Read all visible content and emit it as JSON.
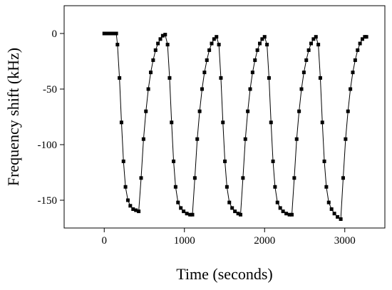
{
  "chart_data": {
    "type": "line",
    "x_label": "Time (seconds)",
    "y_label": "Frequency shift (kHz)",
    "x": [
      0,
      30,
      60,
      90,
      120,
      150,
      165,
      190,
      215,
      240,
      265,
      295,
      325,
      360,
      395,
      430,
      460,
      490,
      520,
      550,
      580,
      610,
      640,
      670,
      700,
      730,
      760,
      790,
      815,
      840,
      865,
      890,
      920,
      955,
      990,
      1030,
      1070,
      1100,
      1130,
      1160,
      1190,
      1220,
      1250,
      1280,
      1310,
      1340,
      1370,
      1400,
      1430,
      1455,
      1480,
      1505,
      1530,
      1560,
      1595,
      1630,
      1670,
      1700,
      1730,
      1760,
      1790,
      1820,
      1850,
      1880,
      1910,
      1940,
      1970,
      2000,
      2030,
      2055,
      2080,
      2105,
      2130,
      2160,
      2195,
      2230,
      2270,
      2310,
      2340,
      2370,
      2400,
      2430,
      2460,
      2490,
      2520,
      2550,
      2580,
      2610,
      2640,
      2670,
      2695,
      2720,
      2745,
      2770,
      2800,
      2835,
      2870,
      2910,
      2950,
      2980,
      3010,
      3040,
      3070,
      3100,
      3130,
      3160,
      3190,
      3220,
      3250,
      3270
    ],
    "series": [
      {
        "color": "#000000",
        "values": [
          0,
          0,
          0,
          0,
          0,
          0,
          -10,
          -40,
          -80,
          -115,
          -138,
          -150,
          -155,
          -158,
          -159,
          -160,
          -130,
          -95,
          -70,
          -50,
          -35,
          -24,
          -15,
          -9,
          -5,
          -2,
          -1,
          -10,
          -40,
          -80,
          -115,
          -138,
          -152,
          -157,
          -160,
          -162,
          -163,
          -163,
          -130,
          -95,
          -70,
          -50,
          -35,
          -24,
          -15,
          -9,
          -5,
          -3,
          -10,
          -40,
          -80,
          -115,
          -138,
          -152,
          -157,
          -160,
          -162,
          -163,
          -130,
          -95,
          -70,
          -50,
          -35,
          -24,
          -15,
          -9,
          -5,
          -3,
          -10,
          -40,
          -80,
          -115,
          -138,
          -152,
          -157,
          -160,
          -162,
          -163,
          -163,
          -130,
          -95,
          -70,
          -50,
          -35,
          -24,
          -15,
          -9,
          -5,
          -3,
          -10,
          -40,
          -80,
          -115,
          -138,
          -152,
          -158,
          -162,
          -165,
          -167,
          -130,
          -95,
          -70,
          -50,
          -35,
          -24,
          -15,
          -9,
          -5,
          -3,
          -3
        ]
      }
    ],
    "xlim": [
      -500,
      3500
    ],
    "xticks": [
      0,
      1000,
      2000,
      3000
    ],
    "ylim": [
      -175,
      25
    ],
    "yticks": [
      0,
      -50,
      -100,
      -150
    ]
  }
}
